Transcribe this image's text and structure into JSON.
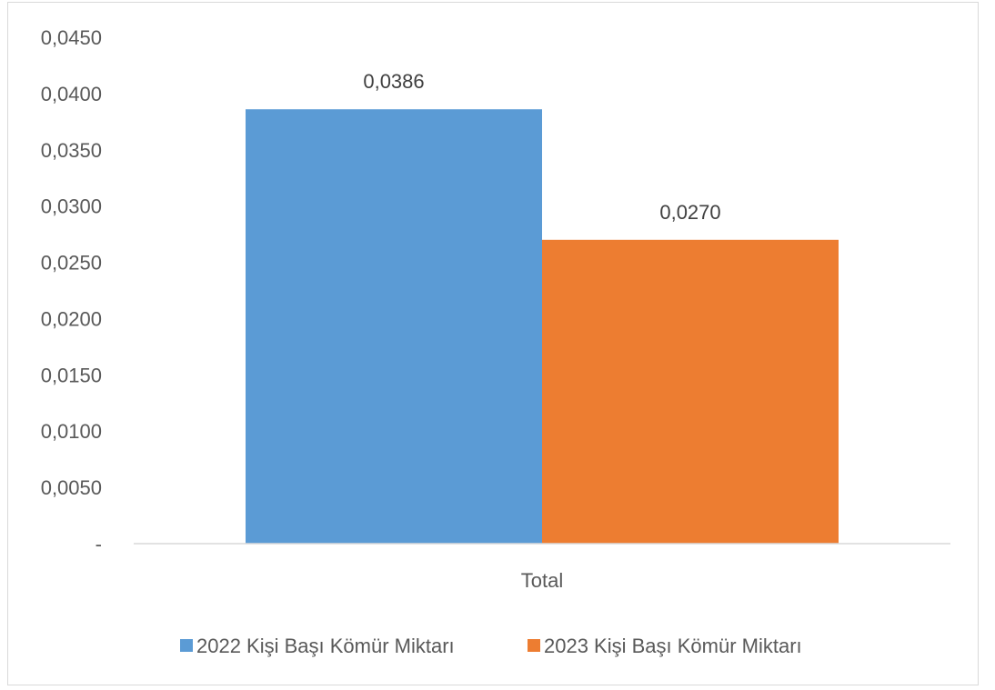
{
  "chart_data": {
    "type": "bar",
    "categories": [
      "Total"
    ],
    "series": [
      {
        "name": "2022 Kişi Başı Kömür Miktarı",
        "values": [
          0.0386
        ],
        "label": "0,0386",
        "color": "#5b9bd5"
      },
      {
        "name": "2023 Kişi Başı Kömür Miktarı",
        "values": [
          0.027
        ],
        "label": "0,0270",
        "color": "#ed7d31"
      }
    ],
    "ylim": [
      0,
      0.045
    ],
    "yticks": [
      {
        "value": 0,
        "label": "-"
      },
      {
        "value": 0.005,
        "label": "0,0050"
      },
      {
        "value": 0.01,
        "label": "0,0100"
      },
      {
        "value": 0.015,
        "label": "0,0150"
      },
      {
        "value": 0.02,
        "label": "0,0200"
      },
      {
        "value": 0.025,
        "label": "0,0250"
      },
      {
        "value": 0.03,
        "label": "0,0300"
      },
      {
        "value": 0.035,
        "label": "0,0350"
      },
      {
        "value": 0.04,
        "label": "0,0400"
      },
      {
        "value": 0.045,
        "label": "0,0450"
      }
    ],
    "grid": false,
    "legend_position": "bottom",
    "title": "",
    "xlabel": "",
    "ylabel": ""
  }
}
